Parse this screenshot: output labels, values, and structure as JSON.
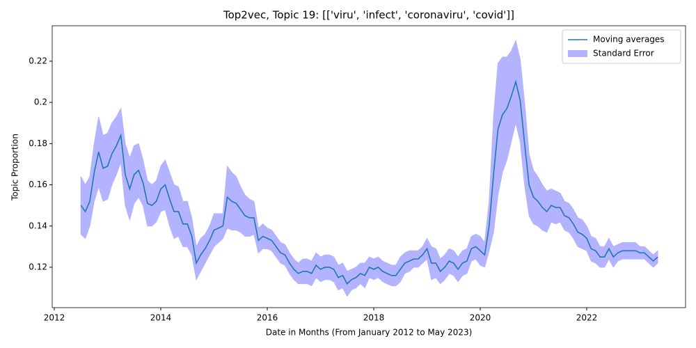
{
  "chart_data": {
    "type": "line",
    "title": "Top2vec, Topic 19: [['viru', 'infect', 'coronaviru', 'covid']]",
    "x_label": "Date in Months (From January 2012 to May 2023)",
    "y_label": "Topic Proportion",
    "x": [
      2012.5,
      2012.583,
      2012.667,
      2012.75,
      2012.833,
      2012.917,
      2013.0,
      2013.083,
      2013.167,
      2013.25,
      2013.333,
      2013.417,
      2013.5,
      2013.583,
      2013.667,
      2013.75,
      2013.833,
      2013.917,
      2014.0,
      2014.083,
      2014.167,
      2014.25,
      2014.333,
      2014.417,
      2014.5,
      2014.583,
      2014.667,
      2014.75,
      2014.833,
      2014.917,
      2015.0,
      2015.083,
      2015.167,
      2015.25,
      2015.333,
      2015.417,
      2015.5,
      2015.583,
      2015.667,
      2015.75,
      2015.833,
      2015.917,
      2016.0,
      2016.083,
      2016.167,
      2016.25,
      2016.333,
      2016.417,
      2016.5,
      2016.583,
      2016.667,
      2016.75,
      2016.833,
      2016.917,
      2017.0,
      2017.083,
      2017.167,
      2017.25,
      2017.333,
      2017.417,
      2017.5,
      2017.583,
      2017.667,
      2017.75,
      2017.833,
      2017.917,
      2018.0,
      2018.083,
      2018.167,
      2018.25,
      2018.333,
      2018.417,
      2018.5,
      2018.583,
      2018.667,
      2018.75,
      2018.833,
      2018.917,
      2019.0,
      2019.083,
      2019.167,
      2019.25,
      2019.333,
      2019.417,
      2019.5,
      2019.583,
      2019.667,
      2019.75,
      2019.833,
      2019.917,
      2020.0,
      2020.083,
      2020.167,
      2020.25,
      2020.333,
      2020.417,
      2020.5,
      2020.583,
      2020.667,
      2020.75,
      2020.833,
      2020.917,
      2021.0,
      2021.083,
      2021.167,
      2021.25,
      2021.333,
      2021.417,
      2021.5,
      2021.583,
      2021.667,
      2021.75,
      2021.833,
      2021.917,
      2022.0,
      2022.083,
      2022.167,
      2022.25,
      2022.333,
      2022.417,
      2022.5,
      2022.583,
      2022.667,
      2022.75,
      2022.833,
      2022.917,
      2023.0,
      2023.083,
      2023.167,
      2023.25,
      2023.333
    ],
    "series": [
      {
        "name": "Moving averages",
        "color": "#1f77b4",
        "values": [
          0.15,
          0.147,
          0.152,
          0.166,
          0.176,
          0.168,
          0.169,
          0.175,
          0.179,
          0.184,
          0.165,
          0.158,
          0.165,
          0.167,
          0.161,
          0.151,
          0.15,
          0.152,
          0.158,
          0.16,
          0.153,
          0.147,
          0.147,
          0.141,
          0.141,
          0.135,
          0.122,
          0.126,
          0.129,
          0.133,
          0.138,
          0.139,
          0.14,
          0.154,
          0.152,
          0.151,
          0.148,
          0.145,
          0.144,
          0.144,
          0.133,
          0.135,
          0.134,
          0.133,
          0.13,
          0.127,
          0.126,
          0.122,
          0.119,
          0.117,
          0.118,
          0.118,
          0.117,
          0.121,
          0.119,
          0.12,
          0.12,
          0.119,
          0.115,
          0.116,
          0.112,
          0.114,
          0.115,
          0.117,
          0.116,
          0.12,
          0.119,
          0.12,
          0.118,
          0.117,
          0.116,
          0.116,
          0.119,
          0.122,
          0.123,
          0.124,
          0.124,
          0.126,
          0.129,
          0.122,
          0.122,
          0.118,
          0.12,
          0.123,
          0.122,
          0.119,
          0.122,
          0.123,
          0.129,
          0.13,
          0.128,
          0.126,
          0.14,
          0.165,
          0.187,
          0.194,
          0.197,
          0.203,
          0.21,
          0.201,
          0.18,
          0.16,
          0.154,
          0.152,
          0.149,
          0.147,
          0.15,
          0.149,
          0.149,
          0.145,
          0.144,
          0.141,
          0.137,
          0.136,
          0.134,
          0.129,
          0.128,
          0.125,
          0.125,
          0.129,
          0.125,
          0.127,
          0.128,
          0.128,
          0.128,
          0.128,
          0.127,
          0.127,
          0.125,
          0.123,
          0.125
        ]
      },
      {
        "name": "Standard Error",
        "color": "#b3b3ff",
        "values": [
          0.014,
          0.013,
          0.012,
          0.014,
          0.017,
          0.016,
          0.016,
          0.015,
          0.014,
          0.013,
          0.015,
          0.015,
          0.014,
          0.013,
          0.011,
          0.011,
          0.01,
          0.01,
          0.011,
          0.012,
          0.013,
          0.013,
          0.012,
          0.011,
          0.011,
          0.009,
          0.008,
          0.008,
          0.007,
          0.007,
          0.008,
          0.007,
          0.006,
          0.015,
          0.014,
          0.013,
          0.011,
          0.01,
          0.009,
          0.008,
          0.006,
          0.006,
          0.005,
          0.005,
          0.005,
          0.005,
          0.005,
          0.005,
          0.005,
          0.005,
          0.006,
          0.006,
          0.006,
          0.006,
          0.006,
          0.006,
          0.006,
          0.006,
          0.006,
          0.006,
          0.006,
          0.005,
          0.005,
          0.005,
          0.006,
          0.005,
          0.005,
          0.005,
          0.005,
          0.005,
          0.005,
          0.005,
          0.006,
          0.005,
          0.005,
          0.004,
          0.004,
          0.004,
          0.005,
          0.008,
          0.007,
          0.006,
          0.006,
          0.006,
          0.006,
          0.006,
          0.006,
          0.006,
          0.006,
          0.006,
          0.007,
          0.006,
          0.012,
          0.028,
          0.032,
          0.028,
          0.025,
          0.022,
          0.02,
          0.02,
          0.02,
          0.015,
          0.013,
          0.012,
          0.011,
          0.01,
          0.008,
          0.008,
          0.007,
          0.007,
          0.007,
          0.007,
          0.007,
          0.007,
          0.006,
          0.006,
          0.006,
          0.005,
          0.005,
          0.005,
          0.005,
          0.004,
          0.004,
          0.004,
          0.004,
          0.004,
          0.003,
          0.003,
          0.003,
          0.003,
          0.003
        ]
      }
    ],
    "xlim": [
      2011.961,
      2023.856
    ],
    "xticks": [
      2012,
      2014,
      2016,
      2018,
      2020,
      2022
    ],
    "ylim": [
      0.1004,
      0.2372
    ],
    "yticks": [
      0.12,
      0.14,
      0.16,
      0.18,
      0.2,
      0.22
    ],
    "legend": "upper right"
  }
}
